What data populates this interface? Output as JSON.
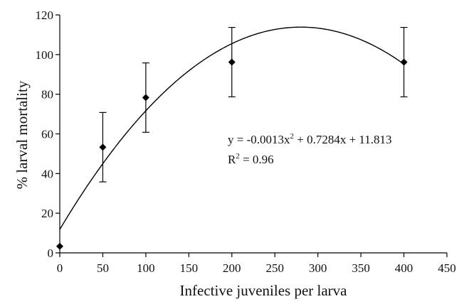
{
  "chart_data": {
    "type": "scatter",
    "title": "",
    "xlabel": "Infective juveniles per larva",
    "ylabel": "% larval mortality",
    "xlim": [
      0,
      450
    ],
    "ylim": [
      0,
      120
    ],
    "x_ticks": [
      "0",
      "50",
      "100",
      "150",
      "200",
      "250",
      "300",
      "350",
      "400",
      "450"
    ],
    "y_ticks": [
      "0",
      "20",
      "40",
      "60",
      "80",
      "100",
      "120"
    ],
    "grid": false,
    "legend": "none",
    "points": [
      {
        "x": 0,
        "y": 3.3,
        "err": 0
      },
      {
        "x": 50,
        "y": 53.3,
        "err": 17.5
      },
      {
        "x": 100,
        "y": 78.3,
        "err": 17.5
      },
      {
        "x": 200,
        "y": 96.2,
        "err": 17.5
      },
      {
        "x": 400,
        "y": 96.2,
        "err": 17.5
      }
    ],
    "fit": {
      "type": "polynomial",
      "coefficients": [
        -0.0013,
        0.7284,
        11.813
      ],
      "x_range": [
        0,
        400
      ]
    },
    "annotation": {
      "equation_main": "y = -0.0013x",
      "equation_exp": "2",
      "equation_rest": " + 0.7284x + 11.813",
      "r2_prefix": "R",
      "r2_exp": "2",
      "r2_rest": " = 0.96"
    },
    "colors": {
      "line": "#000000",
      "marker": "#000000"
    }
  }
}
